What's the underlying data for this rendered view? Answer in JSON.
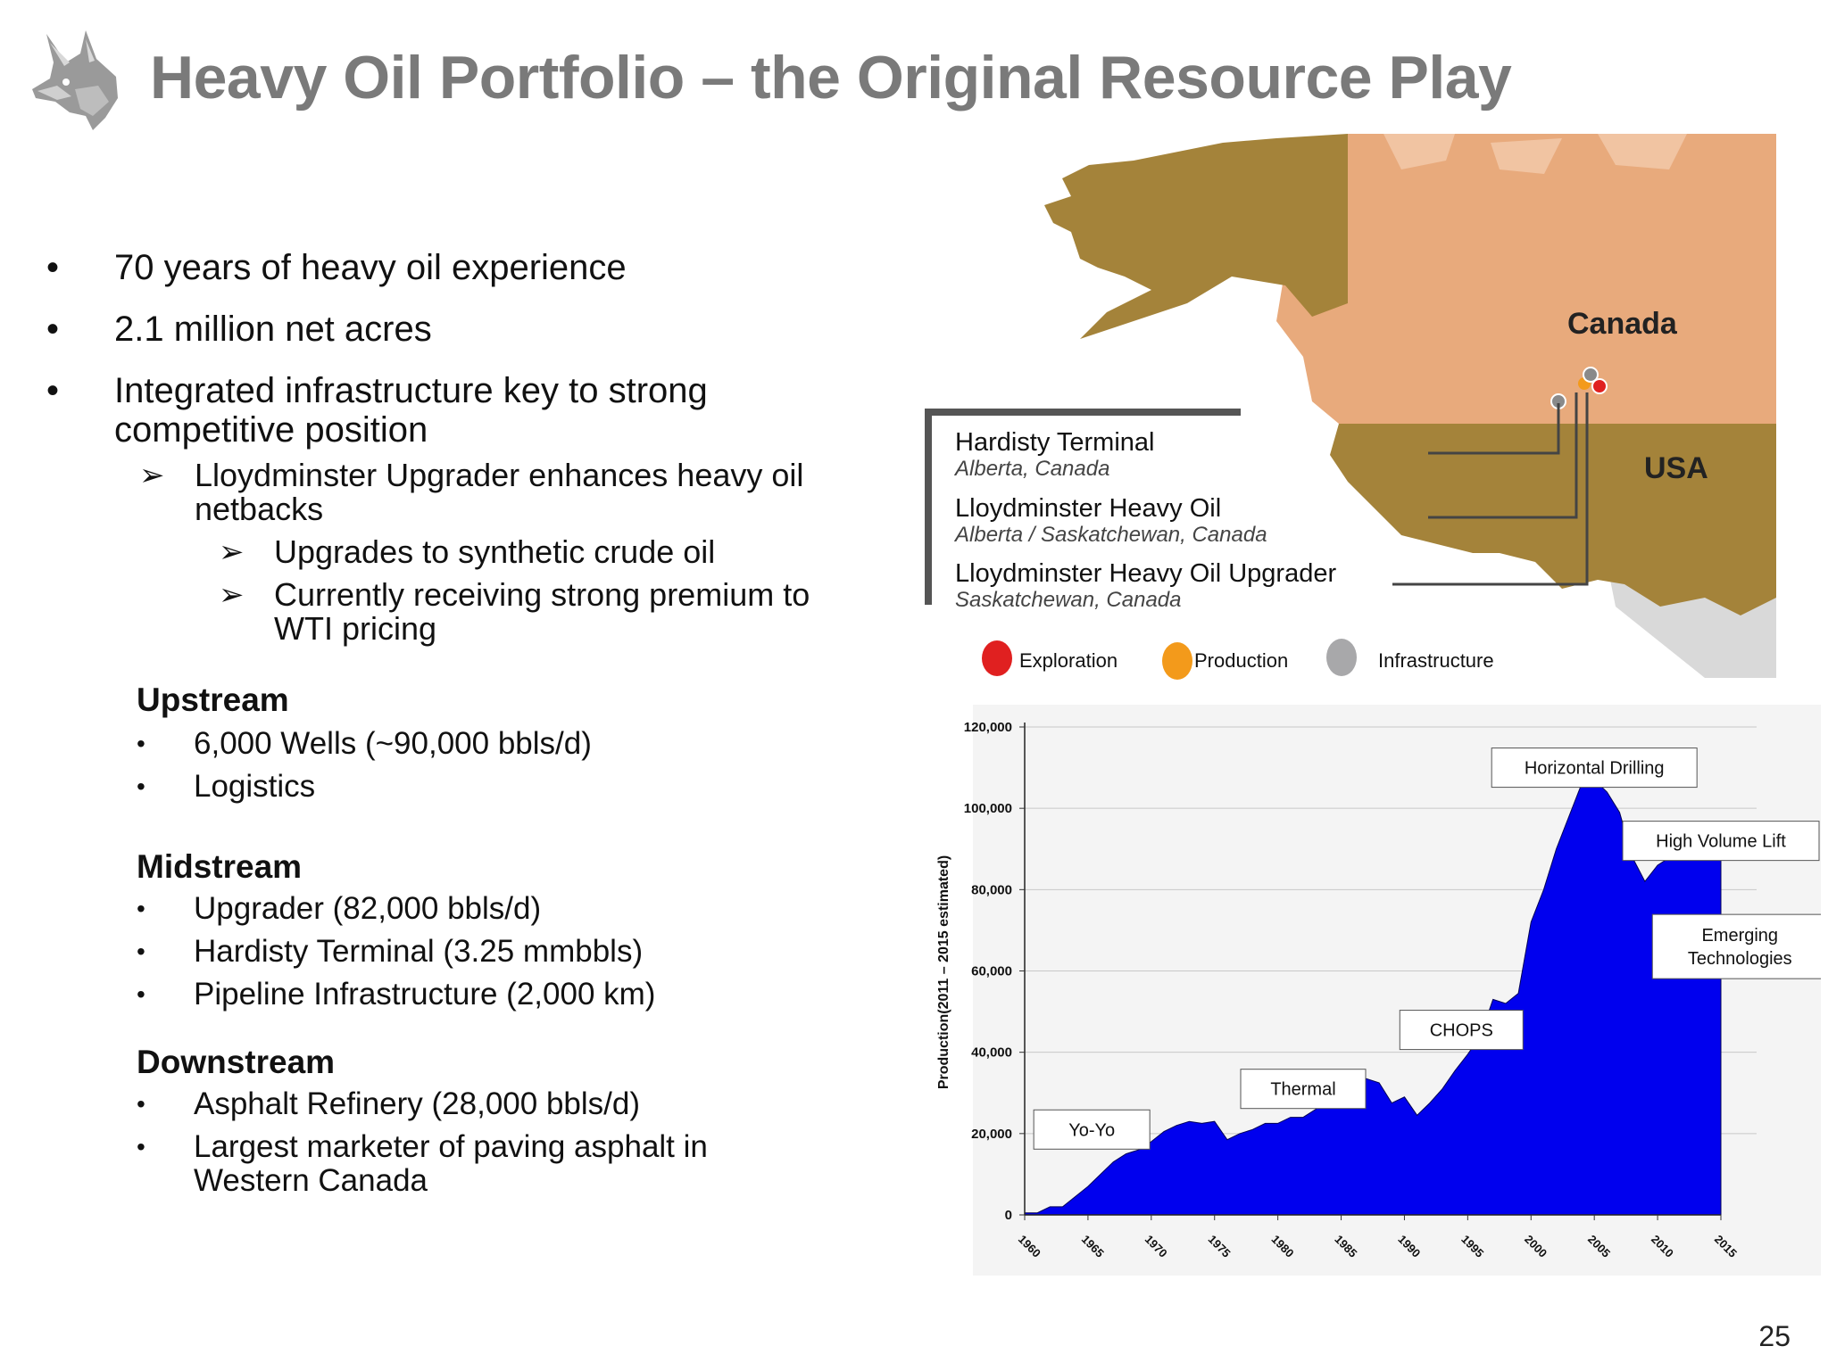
{
  "title": "Heavy Oil Portfolio – the Original Resource Play",
  "bullets": [
    "70 years of heavy oil experience",
    "2.1 million net acres",
    "Integrated infrastructure key to strong competitive position"
  ],
  "sub_bullet": "Lloydminster Upgrader enhances heavy oil netbacks",
  "sub_sub_bullets": [
    "Upgrades to synthetic crude oil",
    "Currently receiving strong premium to WTI  pricing"
  ],
  "sections": [
    {
      "heading": "Upstream",
      "items": [
        "6,000 Wells (~90,000 bbls/d)",
        "Logistics"
      ]
    },
    {
      "heading": "Midstream",
      "items": [
        "Upgrader (82,000 bbls/d)",
        "Hardisty Terminal (3.25 mmbbls)",
        "Pipeline Infrastructure (2,000 km)"
      ]
    },
    {
      "heading": "Downstream",
      "items": [
        "Asphalt Refinery (28,000 bbls/d)",
        "Largest marketer of paving asphalt in Western Canada"
      ]
    }
  ],
  "map": {
    "country_labels": [
      "Canada",
      "USA"
    ],
    "facilities": [
      {
        "name": "Hardisty Terminal",
        "location": "Alberta, Canada"
      },
      {
        "name": "Lloydminster Heavy Oil",
        "location": "Alberta / Saskatchewan, Canada"
      },
      {
        "name": "Lloydminster Heavy Oil Upgrader",
        "location": "Saskatchewan, Canada"
      }
    ],
    "legend": [
      {
        "label": "Exploration",
        "color": "#e02020"
      },
      {
        "label": "Production",
        "color": "#f39a1b"
      },
      {
        "label": "Infrastructure",
        "color": "#a8a8aa"
      }
    ],
    "colors": {
      "canada": "#e8aa7c",
      "us_alaska": "#a4833a",
      "mexico": "#d9d9d9"
    }
  },
  "page_number": "25",
  "chart_data": {
    "type": "area",
    "ylabel": "Production(2011 – 2015 estimated)",
    "ylim": [
      0,
      120000
    ],
    "yticks": [
      "0",
      "20,000",
      "40,000",
      "60,000",
      "80,000",
      "100,000",
      "120,000"
    ],
    "xticks": [
      "1960",
      "1965",
      "1970",
      "1975",
      "1980",
      "1985",
      "1990",
      "1995",
      "2000",
      "2005",
      "2010",
      "2015"
    ],
    "fill_color": "#0000ee",
    "series": [
      {
        "x": [
          1960,
          1961,
          1962,
          1963,
          1964,
          1965,
          1966,
          1967,
          1968,
          1969,
          1970,
          1971,
          1972,
          1973,
          1974,
          1975,
          1976,
          1977,
          1978,
          1979,
          1980,
          1981,
          1982,
          1983,
          1984,
          1985,
          1986,
          1987,
          1988,
          1989,
          1990,
          1991,
          1992,
          1993,
          1994,
          1995,
          1996,
          1997,
          1998,
          1999,
          2000,
          2001,
          2002,
          2003,
          2004,
          2005,
          2006,
          2007,
          2008,
          2009,
          2010,
          2011,
          2012,
          2013,
          2014,
          2015
        ],
        "values": [
          500,
          500,
          2000,
          2000,
          4500,
          7000,
          10000,
          13000,
          15000,
          16000,
          18000,
          20500,
          22000,
          23000,
          22500,
          23000,
          18500,
          20000,
          21000,
          22500,
          22500,
          24000,
          24000,
          26000,
          29000,
          35000,
          34500,
          33500,
          32500,
          27500,
          29000,
          24500,
          27500,
          31000,
          35500,
          39500,
          44000,
          53000,
          52000,
          54500,
          72000,
          80000,
          90000,
          98000,
          106000,
          107000,
          104000,
          99000,
          88000,
          82000,
          86000,
          88000,
          88500,
          89000,
          89000,
          89000
        ]
      }
    ],
    "annotations": [
      "Yo-Yo",
      "Thermal",
      "CHOPS",
      "Horizontal Drilling",
      "High Volume Lift",
      "Emerging Technologies"
    ]
  }
}
